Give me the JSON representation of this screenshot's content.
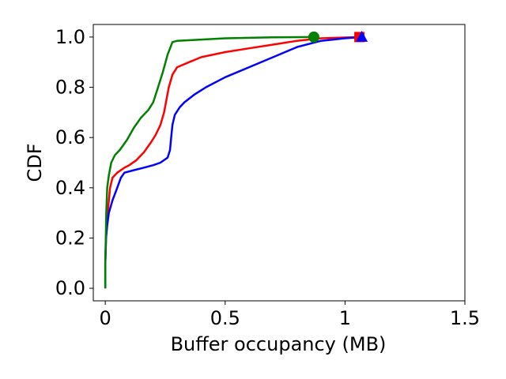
{
  "chart_data": {
    "type": "line",
    "xlabel": "Buffer occupancy (MB)",
    "ylabel": "CDF",
    "xlim": [
      -0.05,
      1.5
    ],
    "ylim": [
      -0.05,
      1.05
    ],
    "xticks": [
      0,
      0.5,
      1,
      1.5
    ],
    "xtick_labels": [
      "0",
      "0.5",
      "1",
      "1.5"
    ],
    "yticks": [
      0.0,
      0.2,
      0.4,
      0.6,
      0.8,
      1.0
    ],
    "ytick_labels": [
      "0.0",
      "0.2",
      "0.4",
      "0.6",
      "0.8",
      "1.0"
    ],
    "grid": false,
    "series": [
      {
        "color": "#ff0000",
        "marker": "square",
        "marker_point": [
          1.06,
          1.0
        ],
        "points": [
          [
            0,
            0.0
          ],
          [
            0,
            0.1
          ],
          [
            0.003,
            0.2
          ],
          [
            0.006,
            0.25
          ],
          [
            0.01,
            0.3
          ],
          [
            0.015,
            0.35
          ],
          [
            0.02,
            0.4
          ],
          [
            0.03,
            0.44
          ],
          [
            0.05,
            0.46
          ],
          [
            0.08,
            0.48
          ],
          [
            0.1,
            0.49
          ],
          [
            0.13,
            0.51
          ],
          [
            0.16,
            0.54
          ],
          [
            0.19,
            0.58
          ],
          [
            0.21,
            0.61
          ],
          [
            0.23,
            0.65
          ],
          [
            0.245,
            0.7
          ],
          [
            0.255,
            0.75
          ],
          [
            0.265,
            0.8
          ],
          [
            0.28,
            0.85
          ],
          [
            0.3,
            0.88
          ],
          [
            0.35,
            0.9
          ],
          [
            0.4,
            0.92
          ],
          [
            0.5,
            0.94
          ],
          [
            0.6,
            0.955
          ],
          [
            0.7,
            0.97
          ],
          [
            0.8,
            0.985
          ],
          [
            0.9,
            0.995
          ],
          [
            1.06,
            1.0
          ]
        ]
      },
      {
        "color": "#0000ff",
        "marker": "triangle",
        "marker_point": [
          1.07,
          1.0
        ],
        "points": [
          [
            0,
            0.0
          ],
          [
            0,
            0.1
          ],
          [
            0.003,
            0.2
          ],
          [
            0.008,
            0.25
          ],
          [
            0.015,
            0.3
          ],
          [
            0.03,
            0.35
          ],
          [
            0.05,
            0.4
          ],
          [
            0.065,
            0.44
          ],
          [
            0.08,
            0.46
          ],
          [
            0.12,
            0.47
          ],
          [
            0.16,
            0.48
          ],
          [
            0.2,
            0.49
          ],
          [
            0.23,
            0.5
          ],
          [
            0.26,
            0.52
          ],
          [
            0.27,
            0.55
          ],
          [
            0.275,
            0.6
          ],
          [
            0.28,
            0.65
          ],
          [
            0.29,
            0.69
          ],
          [
            0.31,
            0.72
          ],
          [
            0.33,
            0.74
          ],
          [
            0.37,
            0.77
          ],
          [
            0.42,
            0.8
          ],
          [
            0.5,
            0.84
          ],
          [
            0.6,
            0.88
          ],
          [
            0.7,
            0.92
          ],
          [
            0.8,
            0.96
          ],
          [
            0.9,
            0.985
          ],
          [
            1.0,
            0.995
          ],
          [
            1.07,
            1.0
          ]
        ]
      },
      {
        "color": "#008000",
        "marker": "circle",
        "marker_point": [
          0.87,
          1.0
        ],
        "points": [
          [
            0,
            0.0
          ],
          [
            0,
            0.1
          ],
          [
            0.002,
            0.2
          ],
          [
            0.004,
            0.3
          ],
          [
            0.008,
            0.4
          ],
          [
            0.015,
            0.45
          ],
          [
            0.025,
            0.5
          ],
          [
            0.04,
            0.53
          ],
          [
            0.06,
            0.55
          ],
          [
            0.09,
            0.59
          ],
          [
            0.12,
            0.64
          ],
          [
            0.15,
            0.68
          ],
          [
            0.18,
            0.71
          ],
          [
            0.2,
            0.74
          ],
          [
            0.22,
            0.8
          ],
          [
            0.24,
            0.86
          ],
          [
            0.26,
            0.93
          ],
          [
            0.28,
            0.98
          ],
          [
            0.3,
            0.985
          ],
          [
            0.4,
            0.99
          ],
          [
            0.5,
            0.995
          ],
          [
            0.6,
            0.997
          ],
          [
            0.7,
            0.999
          ],
          [
            0.87,
            1.0
          ]
        ]
      }
    ]
  }
}
